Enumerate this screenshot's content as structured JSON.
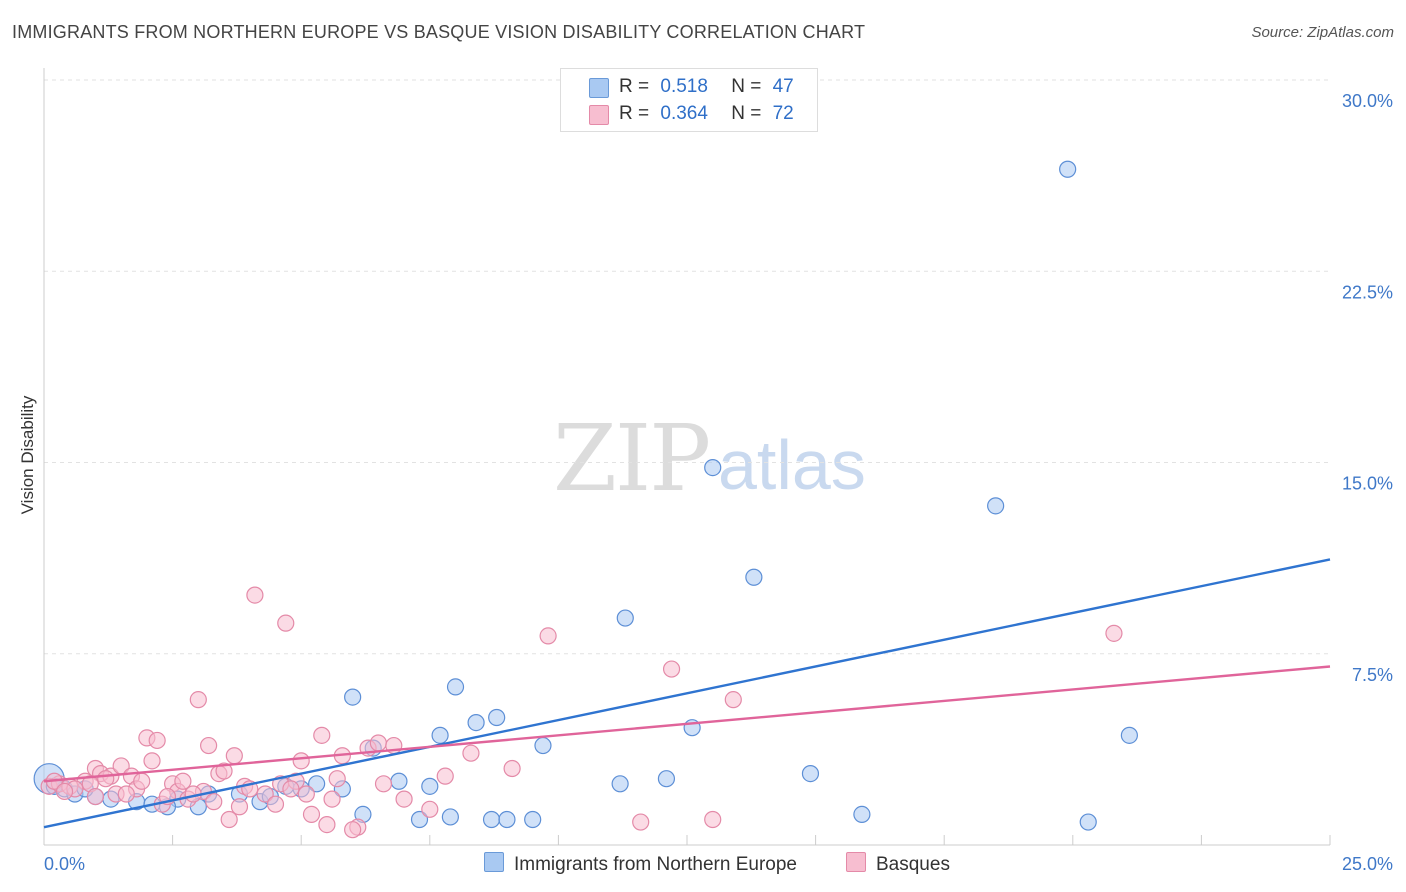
{
  "title": "IMMIGRANTS FROM NORTHERN EUROPE VS BASQUE VISION DISABILITY CORRELATION CHART",
  "source": "Source: ZipAtlas.com",
  "watermark": {
    "zip": "ZIP",
    "atlas": "atlas"
  },
  "legend": {
    "r_label": "R =",
    "n_label": "N =",
    "rows": [
      {
        "r": "0.518",
        "n": "47",
        "color": "#a9c9f2",
        "border": "#6a9ad8"
      },
      {
        "r": "0.364",
        "n": "72",
        "color": "#f7bed0",
        "border": "#e48aa8"
      }
    ]
  },
  "chart_data": {
    "type": "scatter",
    "title": "IMMIGRANTS FROM NORTHERN EUROPE VS BASQUE VISION DISABILITY CORRELATION CHART",
    "xlabel": "",
    "ylabel": "Vision Disability",
    "xlim": [
      0,
      25
    ],
    "ylim": [
      0,
      30
    ],
    "x_ticks": [
      "0.0%",
      "25.0%"
    ],
    "y_ticks": [
      {
        "value": 7.5,
        "label": "7.5%"
      },
      {
        "value": 15,
        "label": "15.0%"
      },
      {
        "value": 22.5,
        "label": "22.5%"
      },
      {
        "value": 30,
        "label": "30.0%"
      }
    ],
    "grid": true,
    "legend_position": "top-center",
    "series": [
      {
        "name": "Immigrants from Northern Europe",
        "color": "#a9c9f2",
        "stroke": "#5d8fd6",
        "line_color": "#2f74d0",
        "trend": [
          [
            0,
            0.7
          ],
          [
            25,
            11.2
          ]
        ],
        "points": [
          [
            0.1,
            2.6
          ],
          [
            0.4,
            2.2
          ],
          [
            0.6,
            2.0
          ],
          [
            1.0,
            1.9
          ],
          [
            1.3,
            1.8
          ],
          [
            1.8,
            1.7
          ],
          [
            2.1,
            1.6
          ],
          [
            2.6,
            1.8
          ],
          [
            3.0,
            1.5
          ],
          [
            3.2,
            2.0
          ],
          [
            3.8,
            2.0
          ],
          [
            4.2,
            1.7
          ],
          [
            4.7,
            2.3
          ],
          [
            5.0,
            2.2
          ],
          [
            5.3,
            2.4
          ],
          [
            5.8,
            2.2
          ],
          [
            6.0,
            5.8
          ],
          [
            6.2,
            1.2
          ],
          [
            6.4,
            3.8
          ],
          [
            6.9,
            2.5
          ],
          [
            7.3,
            1.0
          ],
          [
            7.5,
            2.3
          ],
          [
            7.7,
            4.3
          ],
          [
            7.9,
            1.1
          ],
          [
            8.0,
            6.2
          ],
          [
            8.4,
            4.8
          ],
          [
            8.7,
            1.0
          ],
          [
            8.8,
            5.0
          ],
          [
            9.0,
            1.0
          ],
          [
            9.7,
            3.9
          ],
          [
            11.2,
            2.4
          ],
          [
            11.3,
            8.9
          ],
          [
            12.1,
            2.6
          ],
          [
            12.6,
            4.6
          ],
          [
            13.8,
            10.5
          ],
          [
            14.9,
            2.8
          ],
          [
            15.9,
            1.2
          ],
          [
            18.5,
            13.3
          ],
          [
            19.9,
            26.5
          ],
          [
            20.3,
            0.9
          ],
          [
            21.1,
            4.3
          ],
          [
            13.0,
            14.8
          ],
          [
            0.2,
            2.3
          ],
          [
            0.8,
            2.2
          ],
          [
            2.4,
            1.5
          ],
          [
            4.4,
            1.9
          ],
          [
            9.5,
            1.0
          ]
        ]
      },
      {
        "name": "Basques",
        "color": "#f7bed0",
        "stroke": "#e48aa8",
        "line_color": "#e0649a",
        "trend": [
          [
            0,
            2.5
          ],
          [
            25,
            7.0
          ]
        ],
        "points": [
          [
            0.1,
            2.3
          ],
          [
            0.3,
            2.4
          ],
          [
            0.5,
            2.3
          ],
          [
            0.8,
            2.5
          ],
          [
            1.0,
            3.0
          ],
          [
            1.1,
            2.8
          ],
          [
            1.3,
            2.7
          ],
          [
            1.4,
            2.0
          ],
          [
            1.5,
            3.1
          ],
          [
            1.7,
            2.7
          ],
          [
            1.8,
            2.2
          ],
          [
            2.0,
            4.2
          ],
          [
            2.1,
            3.3
          ],
          [
            2.2,
            4.1
          ],
          [
            2.3,
            1.6
          ],
          [
            2.5,
            2.4
          ],
          [
            2.6,
            2.1
          ],
          [
            2.8,
            1.8
          ],
          [
            3.0,
            5.7
          ],
          [
            3.2,
            3.9
          ],
          [
            3.4,
            2.8
          ],
          [
            3.6,
            1.0
          ],
          [
            3.7,
            3.5
          ],
          [
            3.9,
            2.3
          ],
          [
            4.1,
            9.8
          ],
          [
            4.3,
            2.0
          ],
          [
            4.5,
            1.6
          ],
          [
            4.7,
            8.7
          ],
          [
            4.9,
            2.5
          ],
          [
            5.0,
            3.3
          ],
          [
            5.2,
            1.2
          ],
          [
            5.4,
            4.3
          ],
          [
            5.5,
            0.8
          ],
          [
            5.6,
            1.8
          ],
          [
            5.8,
            3.5
          ],
          [
            6.1,
            0.7
          ],
          [
            6.3,
            3.8
          ],
          [
            6.5,
            4.0
          ],
          [
            6.8,
            3.9
          ],
          [
            7.5,
            1.4
          ],
          [
            7.8,
            2.7
          ],
          [
            8.3,
            3.6
          ],
          [
            9.1,
            3.0
          ],
          [
            9.8,
            8.2
          ],
          [
            11.6,
            0.9
          ],
          [
            12.2,
            6.9
          ],
          [
            13.0,
            1.0
          ],
          [
            13.4,
            5.7
          ],
          [
            20.8,
            8.3
          ],
          [
            0.2,
            2.5
          ],
          [
            0.6,
            2.2
          ],
          [
            0.9,
            2.4
          ],
          [
            1.2,
            2.6
          ],
          [
            1.6,
            2.0
          ],
          [
            1.9,
            2.5
          ],
          [
            2.4,
            1.9
          ],
          [
            2.7,
            2.5
          ],
          [
            3.1,
            2.1
          ],
          [
            3.3,
            1.7
          ],
          [
            3.5,
            2.9
          ],
          [
            3.8,
            1.5
          ],
          [
            4.0,
            2.2
          ],
          [
            4.6,
            2.4
          ],
          [
            5.1,
            2.0
          ],
          [
            5.7,
            2.6
          ],
          [
            6.0,
            0.6
          ],
          [
            6.6,
            2.4
          ],
          [
            7.0,
            1.8
          ],
          [
            0.4,
            2.1
          ],
          [
            1.0,
            1.9
          ],
          [
            2.9,
            2.0
          ],
          [
            4.8,
            2.2
          ]
        ]
      }
    ]
  }
}
